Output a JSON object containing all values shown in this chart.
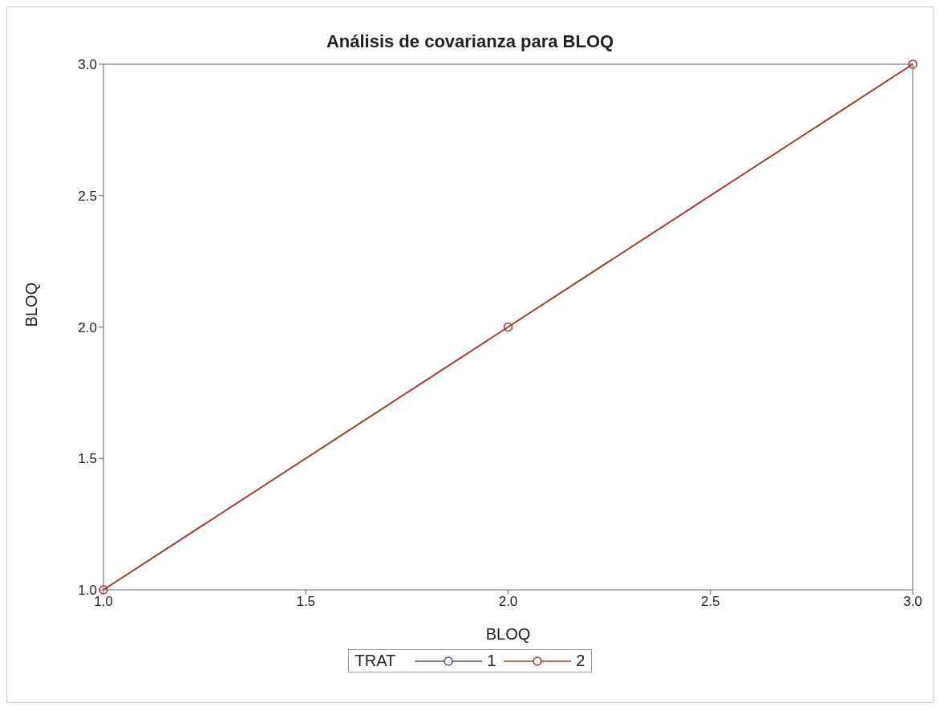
{
  "chart_data": {
    "type": "line",
    "title": "Análisis de covarianza para BLOQ",
    "xlabel": "BLOQ",
    "ylabel": "BLOQ",
    "legend_title": "TRAT",
    "x": [
      1,
      2,
      3
    ],
    "series": [
      {
        "name": "1",
        "color": "#445694",
        "values": [
          null,
          null,
          null
        ]
      },
      {
        "name": "2",
        "color": "#a23a2e",
        "values": [
          1,
          2,
          3
        ]
      }
    ],
    "xlim": [
      1,
      3
    ],
    "xticks": [
      {
        "value": 1,
        "label": "1.0"
      },
      {
        "value": 1.5,
        "label": "1.5"
      },
      {
        "value": 2,
        "label": "2.0"
      },
      {
        "value": 2.5,
        "label": "2.5"
      },
      {
        "value": 3,
        "label": "3.0"
      }
    ],
    "ylim": [
      1,
      3
    ],
    "yticks": [
      {
        "value": 1,
        "label": "1.0"
      },
      {
        "value": 1.5,
        "label": "1.5"
      },
      {
        "value": 2,
        "label": "2.0"
      },
      {
        "value": 2.5,
        "label": "2.5"
      },
      {
        "value": 3,
        "label": "3.0"
      }
    ],
    "grid": false,
    "legend": "bottom",
    "marker": "circle",
    "line_style": "solid"
  }
}
